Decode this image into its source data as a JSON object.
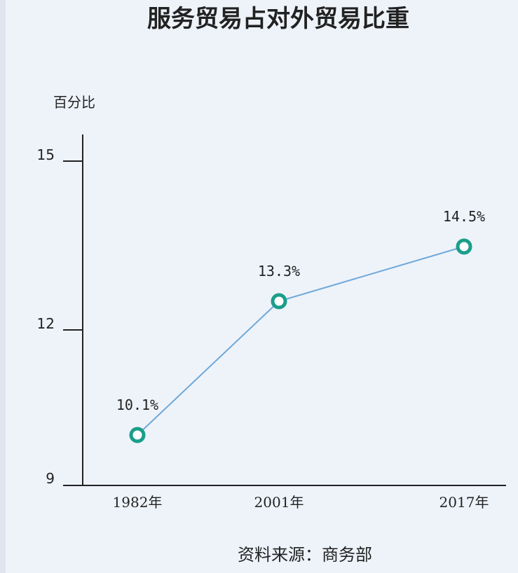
{
  "chart_data": {
    "type": "line",
    "title": "服务贸易占对外贸易比重",
    "ylabel": "百分比",
    "categories": [
      "1982年",
      "2001年",
      "2017年"
    ],
    "values": [
      10.1,
      13.3,
      14.5
    ],
    "data_labels": [
      "10.1%",
      "13.3%",
      "14.5%"
    ],
    "yticks": [
      "15",
      "12",
      "9"
    ],
    "ylim": [
      9,
      15.5
    ],
    "source": "资料来源：商务部",
    "line_color": "#6fa8d8",
    "marker_color": "#1a9e8a",
    "grid": false
  }
}
